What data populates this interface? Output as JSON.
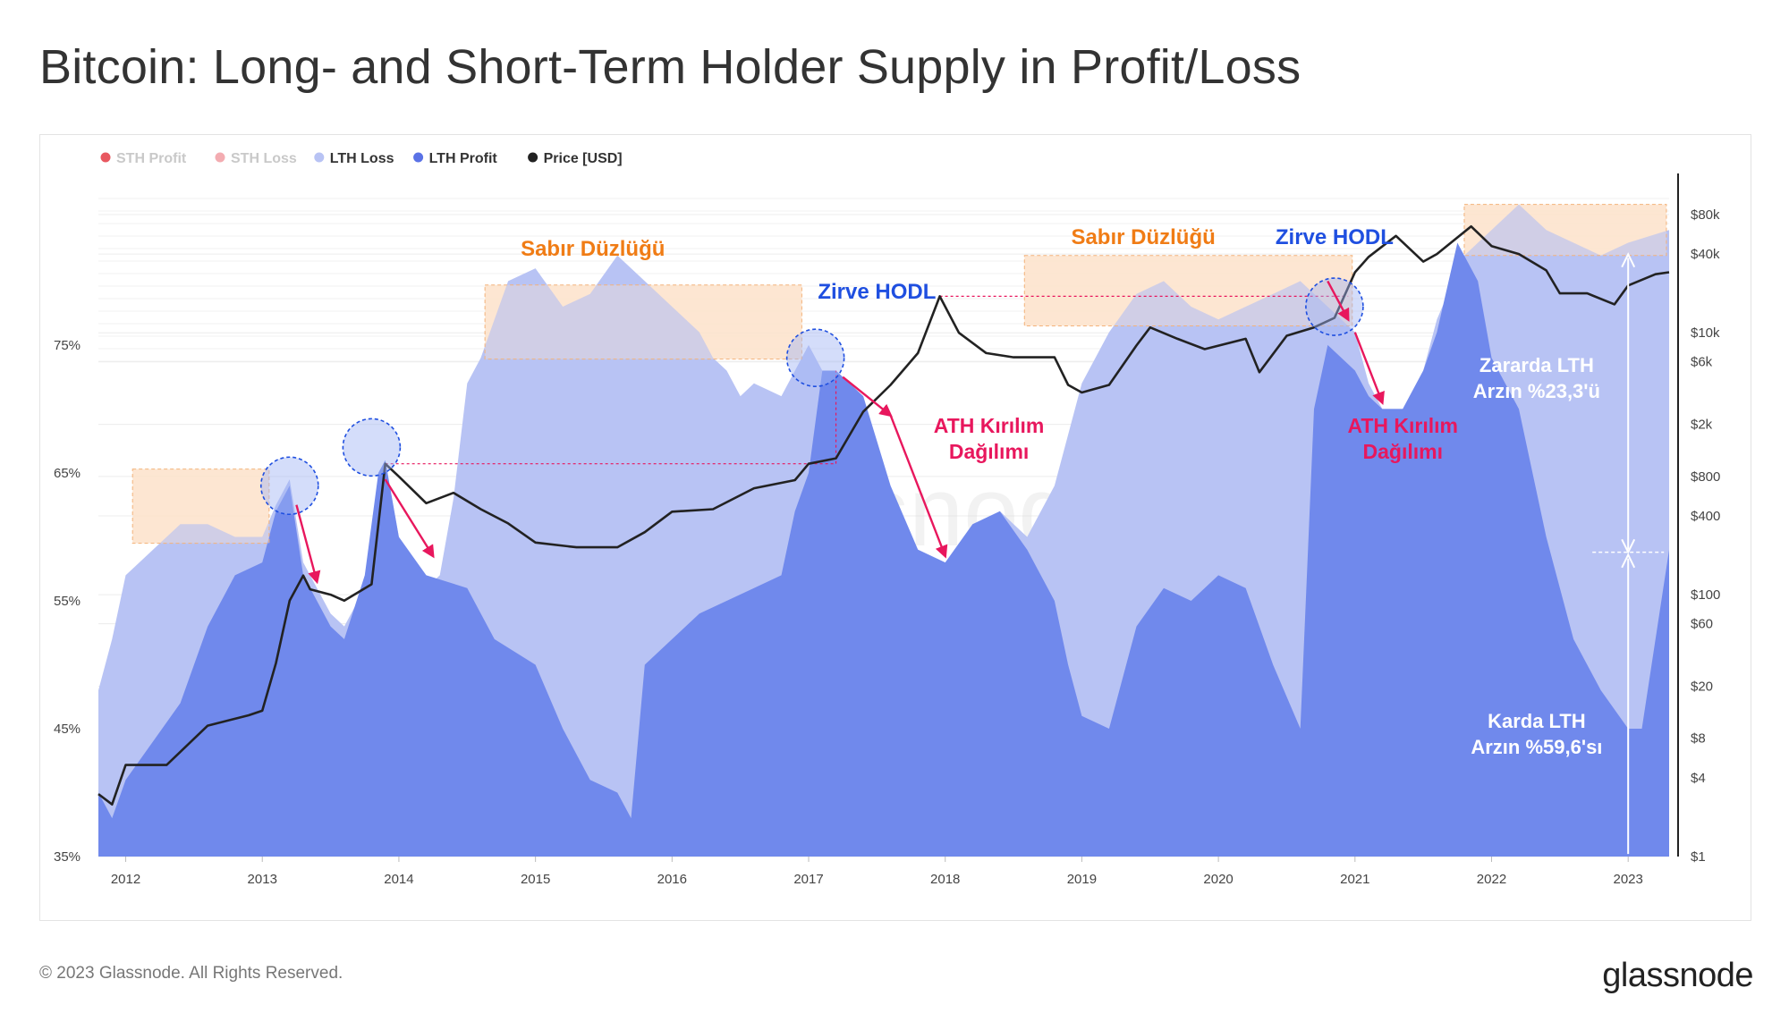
{
  "title": "Bitcoin: Long- and Short-Term Holder Supply in Profit/Loss",
  "footer": {
    "copyright": "© 2023 Glassnode. All Rights Reserved.",
    "logo": "glassnode"
  },
  "watermark": "glassnode",
  "colors": {
    "sth_profit": "#e5464f",
    "sth_loss": "#f2a3a8",
    "lth_loss": "#b8c3f4",
    "lth_profit": "#7089ec",
    "price": "#222222",
    "orange": "#f07c15",
    "blue_annot": "#1f4fe0",
    "magenta": "#e8175d",
    "orange_fill": "#fde3cc"
  },
  "chart_data": {
    "type": "area",
    "legend": [
      {
        "name": "STH Profit",
        "color": "#e5464f",
        "muted": true
      },
      {
        "name": "STH Loss",
        "color": "#f2a3a8",
        "muted": true
      },
      {
        "name": "LTH Loss",
        "color": "#b8c3f4",
        "muted": false
      },
      {
        "name": "LTH Profit",
        "color": "#5a72e6",
        "muted": false
      },
      {
        "name": "Price [USD]",
        "color": "#222222",
        "muted": false
      }
    ],
    "x_ticks": [
      "2012",
      "2013",
      "2014",
      "2015",
      "2016",
      "2017",
      "2018",
      "2019",
      "2020",
      "2021",
      "2022",
      "2023"
    ],
    "x_range": [
      2011.8,
      2023.3
    ],
    "y_left_ticks": [
      "35%",
      "45%",
      "55%",
      "65%",
      "75%"
    ],
    "y_left_range": [
      35,
      88
    ],
    "y_right_ticks": [
      "$1",
      "$4",
      "$8",
      "$20",
      "$60",
      "$100",
      "$400",
      "$800",
      "$2k",
      "$6k",
      "$10k",
      "$40k",
      "$80k"
    ],
    "y_right_scale": "log",
    "y_right_range": [
      1,
      150000
    ],
    "series": [
      {
        "name": "LTH Total",
        "x": [
          2011.8,
          2011.9,
          2012.0,
          2012.2,
          2012.4,
          2012.6,
          2012.8,
          2013.0,
          2013.1,
          2013.2,
          2013.3,
          2013.5,
          2013.6,
          2013.75,
          2013.85,
          2013.9,
          2014.0,
          2014.1,
          2014.2,
          2014.3,
          2014.4,
          2014.5,
          2014.6,
          2014.8,
          2015.0,
          2015.2,
          2015.4,
          2015.6,
          2015.8,
          2016.0,
          2016.2,
          2016.3,
          2016.4,
          2016.5,
          2016.6,
          2016.8,
          2017.0,
          2017.1,
          2017.2,
          2017.4,
          2017.6,
          2017.8,
          2018.0,
          2018.2,
          2018.4,
          2018.6,
          2018.8,
          2019.0,
          2019.2,
          2019.4,
          2019.6,
          2019.8,
          2020.0,
          2020.2,
          2020.4,
          2020.6,
          2020.8,
          2021.0,
          2021.1,
          2021.2,
          2021.35,
          2021.5,
          2021.6,
          2021.8,
          2022.0,
          2022.2,
          2022.4,
          2022.6,
          2022.8,
          2023.0,
          2023.3
        ],
        "y": [
          48,
          52,
          57,
          59,
          61,
          61,
          60,
          60,
          62.5,
          64.5,
          58,
          54,
          53,
          56,
          63,
          66,
          60,
          57,
          56,
          57,
          63,
          72,
          74,
          80,
          81,
          78,
          79,
          82,
          80,
          78,
          76,
          74,
          73,
          71,
          72,
          71,
          75,
          73,
          72,
          70,
          63,
          59,
          58,
          60,
          62,
          60,
          64,
          72,
          76,
          79,
          80,
          78,
          77,
          78,
          79,
          80,
          78,
          76,
          72,
          70,
          70,
          73,
          77,
          82,
          84,
          86,
          84,
          83,
          82,
          83,
          84
        ]
      },
      {
        "name": "LTH Profit",
        "x": [
          2011.8,
          2011.9,
          2012.0,
          2012.2,
          2012.4,
          2012.6,
          2012.8,
          2013.0,
          2013.1,
          2013.2,
          2013.3,
          2013.4,
          2013.5,
          2013.6,
          2013.75,
          2013.85,
          2013.9,
          2014.0,
          2014.2,
          2014.5,
          2014.7,
          2015.0,
          2015.2,
          2015.4,
          2015.6,
          2015.7,
          2015.8,
          2016.0,
          2016.2,
          2016.4,
          2016.6,
          2016.8,
          2016.9,
          2017.0,
          2017.1,
          2017.2,
          2017.4,
          2017.6,
          2017.8,
          2018.0,
          2018.2,
          2018.4,
          2018.6,
          2018.8,
          2018.9,
          2019.0,
          2019.2,
          2019.4,
          2019.6,
          2019.8,
          2020.0,
          2020.2,
          2020.4,
          2020.6,
          2020.7,
          2020.8,
          2021.0,
          2021.1,
          2021.2,
          2021.35,
          2021.5,
          2021.6,
          2021.75,
          2021.9,
          2022.0,
          2022.2,
          2022.4,
          2022.6,
          2022.8,
          2023.0,
          2023.1,
          2023.3
        ],
        "y": [
          40,
          38,
          41,
          44,
          47,
          53,
          57,
          58,
          62,
          64,
          57,
          55,
          53,
          52,
          57,
          65,
          66,
          60,
          57,
          56,
          52,
          50,
          45,
          41,
          40,
          38,
          50,
          52,
          54,
          55,
          56,
          57,
          62,
          65,
          73,
          73,
          71,
          64,
          59,
          58,
          61,
          62,
          59,
          55,
          50,
          46,
          45,
          53,
          56,
          55,
          57,
          56,
          50,
          45,
          70,
          75,
          73,
          71,
          70,
          70,
          73,
          76,
          83,
          80,
          74,
          70,
          60,
          52,
          48,
          45,
          45,
          59
        ]
      },
      {
        "name": "Price [USD]",
        "x": [
          2011.8,
          2011.9,
          2012.0,
          2012.3,
          2012.6,
          2012.9,
          2013.0,
          2013.1,
          2013.2,
          2013.3,
          2013.35,
          2013.5,
          2013.6,
          2013.8,
          2013.9,
          2014.0,
          2014.2,
          2014.4,
          2014.6,
          2014.8,
          2015.0,
          2015.3,
          2015.6,
          2015.8,
          2016.0,
          2016.3,
          2016.6,
          2016.9,
          2017.0,
          2017.2,
          2017.4,
          2017.6,
          2017.8,
          2017.96,
          2018.1,
          2018.3,
          2018.5,
          2018.8,
          2018.9,
          2019.0,
          2019.2,
          2019.4,
          2019.5,
          2019.7,
          2019.9,
          2020.2,
          2020.3,
          2020.5,
          2020.7,
          2020.85,
          2021.0,
          2021.1,
          2021.3,
          2021.5,
          2021.6,
          2021.85,
          2022.0,
          2022.2,
          2022.4,
          2022.5,
          2022.7,
          2022.9,
          2023.0,
          2023.2,
          2023.3
        ],
        "y": [
          3,
          2.5,
          5,
          5,
          10,
          12,
          13,
          30,
          90,
          140,
          110,
          100,
          90,
          120,
          1000,
          800,
          500,
          600,
          450,
          350,
          250,
          230,
          230,
          300,
          430,
          450,
          650,
          750,
          1000,
          1100,
          2500,
          4000,
          7000,
          19000,
          10000,
          7000,
          6500,
          6500,
          4000,
          3500,
          4000,
          8000,
          11000,
          9000,
          7500,
          9000,
          5000,
          9500,
          11000,
          13000,
          29000,
          38000,
          55000,
          35000,
          40000,
          65000,
          46000,
          40000,
          30000,
          20000,
          20000,
          16500,
          23000,
          28000,
          29000
        ]
      }
    ],
    "annotations": [
      {
        "text": "Sabır Düzlüğü",
        "color": "orange"
      },
      {
        "text": "Sabır Düzlüğü",
        "color": "orange"
      },
      {
        "text": "Zirve HODL",
        "color": "blue"
      },
      {
        "text": "Zirve HODL",
        "color": "blue"
      },
      {
        "text": "ATH Kırılım",
        "text2": "Dağılımı",
        "color": "magenta"
      },
      {
        "text": "ATH Kırılım",
        "text2": "Dağılımı",
        "color": "magenta"
      },
      {
        "text": "Zararda LTH",
        "text2": "Arzın %23,3'ü",
        "color": "white"
      },
      {
        "text": "Karda LTH",
        "text2": "Arzın %59,6'sı",
        "color": "white"
      }
    ]
  }
}
